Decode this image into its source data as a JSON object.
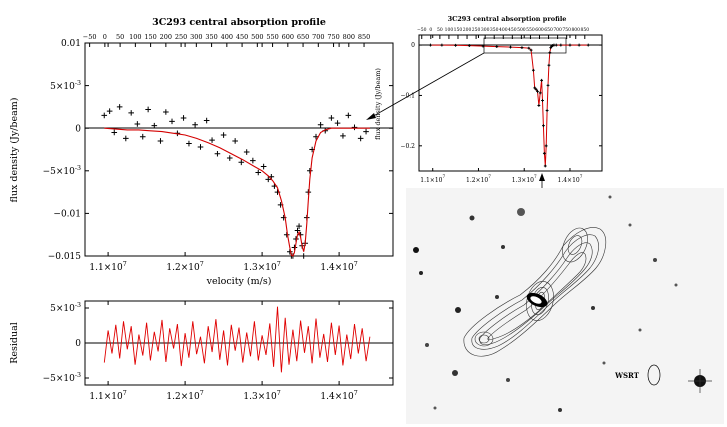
{
  "chart_data": [
    {
      "type": "scatter",
      "title": "3C293 central absorption profile",
      "xlabel": "velocity (m/s)",
      "ylabel": "flux density (Jy/beam)",
      "xlim": [
        10700000,
        14700000
      ],
      "ylim": [
        -0.015,
        0.01
      ],
      "x_ticks": [
        "1.1×10^7",
        "1.2×10^7",
        "1.3×10^7",
        "1.4×10^7"
      ],
      "x_tick_values": [
        11000000,
        12000000,
        13000000,
        14000000
      ],
      "y_ticks": [
        "0.01",
        "5×10^-3",
        "0",
        "−5×10^-3",
        "−0.01",
        "−0.015"
      ],
      "y_tick_values": [
        0.01,
        0.005,
        0,
        -0.005,
        -0.01,
        -0.015
      ],
      "top_axis": {
        "ticks": [
          "−50",
          "0",
          "50",
          "100",
          "150",
          "200",
          "250",
          "300",
          "350",
          "400",
          "450",
          "500",
          "550",
          "600",
          "650",
          "700",
          "750",
          "800",
          "850"
        ],
        "start": -50,
        "step": 50,
        "x_at_start": 10760000,
        "x_per_step": 198000
      },
      "series": [
        {
          "kind": "data-points",
          "color": "#000000",
          "marker": "plus",
          "x": [
            10950000,
            11020000,
            11080000,
            11150000,
            11230000,
            11300000,
            11380000,
            11450000,
            11520000,
            11600000,
            11680000,
            11750000,
            11830000,
            11900000,
            11980000,
            12050000,
            12130000,
            12200000,
            12280000,
            12350000,
            12420000,
            12500000,
            12580000,
            12650000,
            12730000,
            12800000,
            12880000,
            12950000,
            13020000,
            13080000,
            13120000,
            13160000,
            13200000,
            13240000,
            13280000,
            13320000,
            13360000,
            13380000,
            13400000,
            13420000,
            13440000,
            13460000,
            13480000,
            13500000,
            13520000,
            13540000,
            13560000,
            13580000,
            13600000,
            13620000,
            13650000,
            13700000,
            13760000,
            13820000,
            13900000,
            13980000,
            14050000,
            14120000,
            14200000,
            14280000,
            14350000
          ],
          "y": [
            0.0015,
            0.002,
            -0.0005,
            0.0025,
            -0.0012,
            0.0018,
            0.0005,
            -0.001,
            0.0022,
            0.0003,
            -0.0015,
            0.0019,
            0.0008,
            -0.0006,
            0.0012,
            -0.0018,
            0.0004,
            -0.0022,
            0.0009,
            -0.0014,
            -0.003,
            -0.0008,
            -0.0035,
            -0.0015,
            -0.004,
            -0.0028,
            -0.0038,
            -0.0052,
            -0.0045,
            -0.006,
            -0.0057,
            -0.0068,
            -0.0075,
            -0.009,
            -0.0105,
            -0.0125,
            -0.0145,
            -0.015,
            -0.0152,
            -0.014,
            -0.013,
            -0.012,
            -0.0115,
            -0.0125,
            -0.0138,
            -0.015,
            -0.0135,
            -0.0105,
            -0.0075,
            -0.005,
            -0.0025,
            -0.001,
            0.0004,
            -0.0003,
            0.0012,
            0.0006,
            -0.0009,
            0.0015,
            0.0001,
            -0.0012,
            -0.0004
          ]
        },
        {
          "kind": "fit",
          "color": "#d40000",
          "type": "line",
          "x": [
            10950000,
            11100000,
            11250000,
            11400000,
            11550000,
            11700000,
            11850000,
            12000000,
            12150000,
            12300000,
            12450000,
            12600000,
            12750000,
            12900000,
            13000000,
            13080000,
            13140000,
            13200000,
            13250000,
            13300000,
            13330000,
            13360000,
            13380000,
            13400000,
            13420000,
            13440000,
            13460000,
            13480000,
            13500000,
            13520000,
            13540000,
            13560000,
            13580000,
            13600000,
            13620000,
            13650000,
            13700000,
            13760000,
            13820000,
            13900000,
            14000000,
            14100000,
            14200000,
            14300000,
            14400000
          ],
          "y": [
            0,
            -0.0001,
            -0.0002,
            -0.0002,
            -0.0003,
            -0.0004,
            -0.0006,
            -0.0008,
            -0.0012,
            -0.0017,
            -0.0023,
            -0.003,
            -0.0037,
            -0.0045,
            -0.005,
            -0.0056,
            -0.0062,
            -0.007,
            -0.0085,
            -0.0105,
            -0.0125,
            -0.014,
            -0.0149,
            -0.0152,
            -0.0146,
            -0.0135,
            -0.0125,
            -0.0122,
            -0.0128,
            -0.0138,
            -0.0145,
            -0.0135,
            -0.0112,
            -0.0085,
            -0.006,
            -0.0035,
            -0.0015,
            -0.0005,
            -0.0002,
            0,
            0,
            0,
            0,
            0,
            0
          ]
        }
      ]
    },
    {
      "type": "line",
      "ylabel": "Residual",
      "xlim": [
        10700000,
        14700000
      ],
      "ylim": [
        -0.006,
        0.006
      ],
      "x_ticks": [
        "1.1×10^7",
        "1.2×10^7",
        "1.3×10^7",
        "1.4×10^7"
      ],
      "x_tick_values": [
        11000000,
        12000000,
        13000000,
        14000000
      ],
      "y_ticks": [
        "5×10^-3",
        "0",
        "−5×10^-3"
      ],
      "y_tick_values": [
        0.005,
        0,
        -0.005
      ],
      "series": [
        {
          "color": "#e00000",
          "x": [
            10950000,
            11000000,
            11050000,
            11100000,
            11150000,
            11200000,
            11250000,
            11300000,
            11350000,
            11400000,
            11450000,
            11500000,
            11550000,
            11600000,
            11650000,
            11700000,
            11750000,
            11800000,
            11850000,
            11900000,
            11950000,
            12000000,
            12050000,
            12100000,
            12150000,
            12200000,
            12250000,
            12300000,
            12350000,
            12400000,
            12450000,
            12500000,
            12550000,
            12600000,
            12650000,
            12700000,
            12750000,
            12800000,
            12850000,
            12900000,
            12950000,
            13000000,
            13050000,
            13100000,
            13150000,
            13200000,
            13250000,
            13300000,
            13350000,
            13400000,
            13450000,
            13500000,
            13550000,
            13600000,
            13650000,
            13700000,
            13750000,
            13800000,
            13850000,
            13900000,
            13950000,
            14000000,
            14050000,
            14100000,
            14150000,
            14200000,
            14250000,
            14300000,
            14350000,
            14400000
          ],
          "y": [
            -0.0028,
            0.0018,
            -0.0015,
            0.0026,
            -0.0022,
            0.0031,
            -0.0009,
            0.0024,
            -0.0031,
            0.0012,
            -0.0018,
            0.0029,
            -0.0025,
            0.0016,
            -0.0012,
            0.0033,
            -0.0027,
            0.0021,
            -0.0008,
            0.0027,
            -0.0033,
            0.0014,
            -0.0021,
            0.0031,
            -0.0016,
            0.0009,
            -0.0029,
            0.0024,
            -0.0013,
            0.0034,
            -0.0024,
            0.0018,
            -0.0032,
            0.0026,
            -0.0011,
            0.0022,
            -0.0028,
            0.0015,
            -0.0019,
            0.0031,
            -0.0025,
            0.0011,
            -0.0017,
            0.0028,
            -0.0034,
            0.0052,
            -0.0042,
            0.0036,
            -0.0031,
            0.0019,
            -0.0026,
            0.0032,
            -0.0014,
            0.0024,
            -0.0029,
            0.0035,
            -0.0021,
            0.0013,
            -0.0027,
            0.0029,
            -0.0017,
            0.0025,
            -0.0032,
            0.0012,
            -0.0023,
            0.0027,
            -0.0015,
            0.0021,
            -0.0026,
            0.0009
          ]
        }
      ]
    },
    {
      "type": "line",
      "title": "3C293 central absorption profile",
      "ylabel": "flux density (Jy/beam)",
      "xlim": [
        10700000,
        14700000
      ],
      "ylim": [
        -0.25,
        0.02
      ],
      "x_ticks": [
        "1.1×10^7",
        "1.2×10^7",
        "1.3×10^7",
        "1.4×10^7"
      ],
      "x_tick_values": [
        11000000,
        12000000,
        13000000,
        14000000
      ],
      "y_ticks": [
        "0",
        "−0.1",
        "−0.2"
      ],
      "y_tick_values": [
        0,
        -0.1,
        -0.2
      ],
      "top_axis": {
        "ticks": [
          "−50",
          "0",
          "50",
          "100",
          "150",
          "200",
          "250",
          "300",
          "350",
          "400",
          "450",
          "500",
          "550",
          "600",
          "650",
          "700",
          "750",
          "800",
          "850"
        ],
        "start": -50,
        "step": 50,
        "x_at_start": 10760000,
        "x_per_step": 198000
      },
      "series": [
        {
          "color": "#d40000",
          "x": [
            10950000,
            11200000,
            11500000,
            11800000,
            12100000,
            12400000,
            12700000,
            12950000,
            13100000,
            13150000,
            13200000,
            13230000,
            13260000,
            13290000,
            13320000,
            13350000,
            13380000,
            13400000,
            13420000,
            13440000,
            13460000,
            13480000,
            13500000,
            13520000,
            13540000,
            13560000,
            13580000,
            13600000,
            13620000,
            13650000,
            13700000,
            13800000,
            14000000,
            14200000,
            14400000
          ],
          "y": [
            0,
            0,
            -0.0005,
            -0.001,
            -0.002,
            -0.003,
            -0.004,
            -0.005,
            -0.006,
            -0.01,
            -0.05,
            -0.085,
            -0.088,
            -0.092,
            -0.12,
            -0.095,
            -0.07,
            -0.11,
            -0.16,
            -0.215,
            -0.24,
            -0.2,
            -0.13,
            -0.08,
            -0.04,
            -0.015,
            -0.005,
            -0.002,
            -0.001,
            0,
            0,
            0,
            0,
            0,
            0
          ]
        }
      ]
    }
  ],
  "image_panel": {
    "label": "WSRT"
  }
}
